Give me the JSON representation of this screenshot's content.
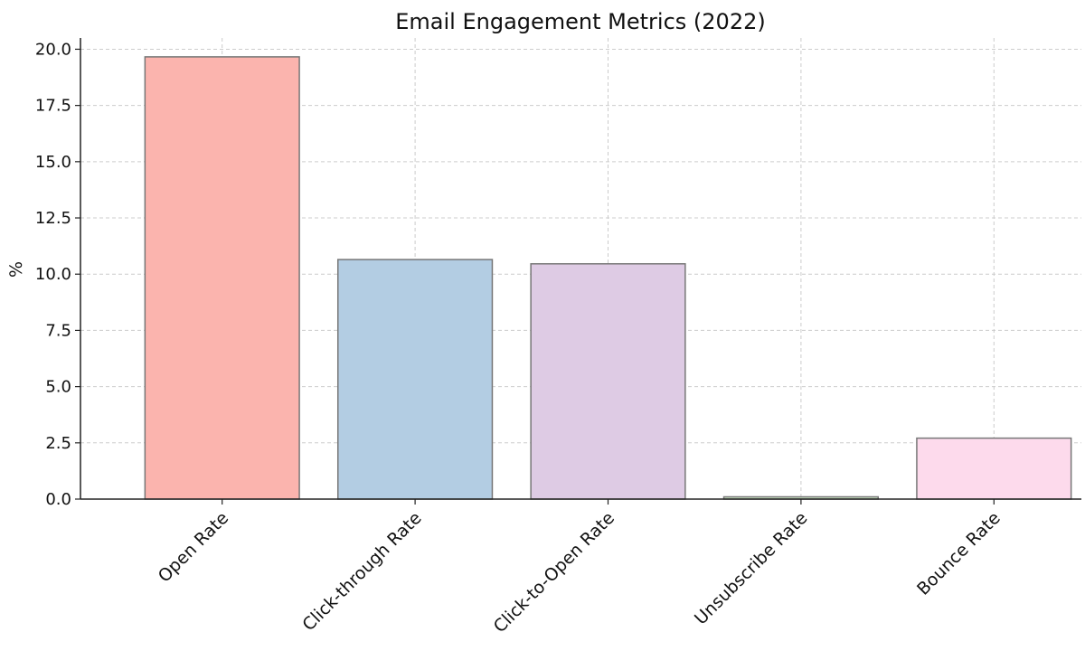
{
  "chart_data": {
    "type": "bar",
    "title": "Email Engagement Metrics (2022)",
    "xlabel": "",
    "ylabel": "%",
    "categories": [
      "Open Rate",
      "Click-through Rate",
      "Click-to-Open Rate",
      "Unsubscribe Rate",
      "Bounce Rate"
    ],
    "values": [
      19.66,
      10.65,
      10.46,
      0.1,
      2.71
    ],
    "colors": [
      "#fbb4ae",
      "#b3cde3",
      "#decbe4",
      "#ccebc5",
      "#fddaec"
    ],
    "ylim": [
      0,
      20.5
    ],
    "yticks": [
      0,
      2.5,
      5,
      7.5,
      10,
      12.5,
      15,
      17.5,
      20
    ],
    "ytick_labels": [
      "0.0",
      "2.5",
      "5.0",
      "7.5",
      "10.0",
      "12.5",
      "15.0",
      "17.5",
      "20.0"
    ],
    "grid": true,
    "legend": "none"
  }
}
